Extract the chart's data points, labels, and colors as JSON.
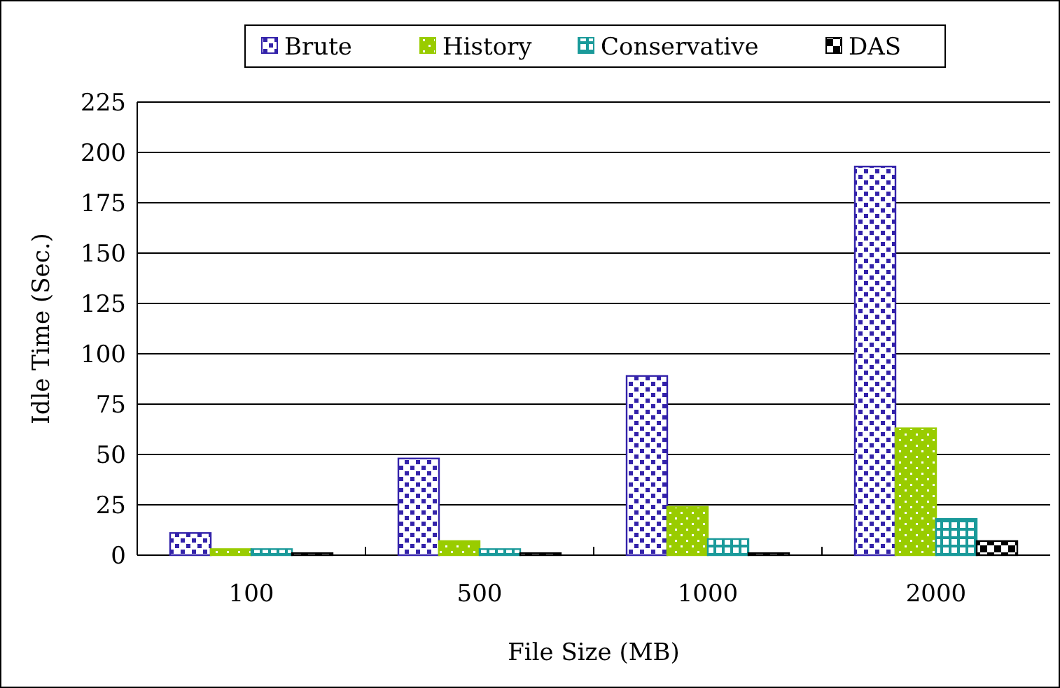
{
  "chart_data": {
    "type": "bar",
    "xlabel": "File Size (MB)",
    "ylabel": "Idle Time (Sec.)",
    "categories": [
      "100",
      "500",
      "1000",
      "2000"
    ],
    "series": [
      {
        "name": "Brute",
        "color": "#3322aa",
        "values": [
          11,
          48,
          89,
          193
        ]
      },
      {
        "name": "History",
        "color": "#99cc00",
        "values": [
          3,
          7,
          24,
          63
        ]
      },
      {
        "name": "Conservative",
        "color": "#1a9a9a",
        "values": [
          3,
          3,
          8,
          18
        ]
      },
      {
        "name": "DAS",
        "color": "#000000",
        "values": [
          1,
          1,
          1,
          7
        ]
      }
    ],
    "ylim": [
      0,
      225
    ],
    "yticks": [
      0,
      25,
      50,
      75,
      100,
      125,
      150,
      175,
      200,
      225
    ],
    "grid": "y",
    "legend": "top"
  }
}
